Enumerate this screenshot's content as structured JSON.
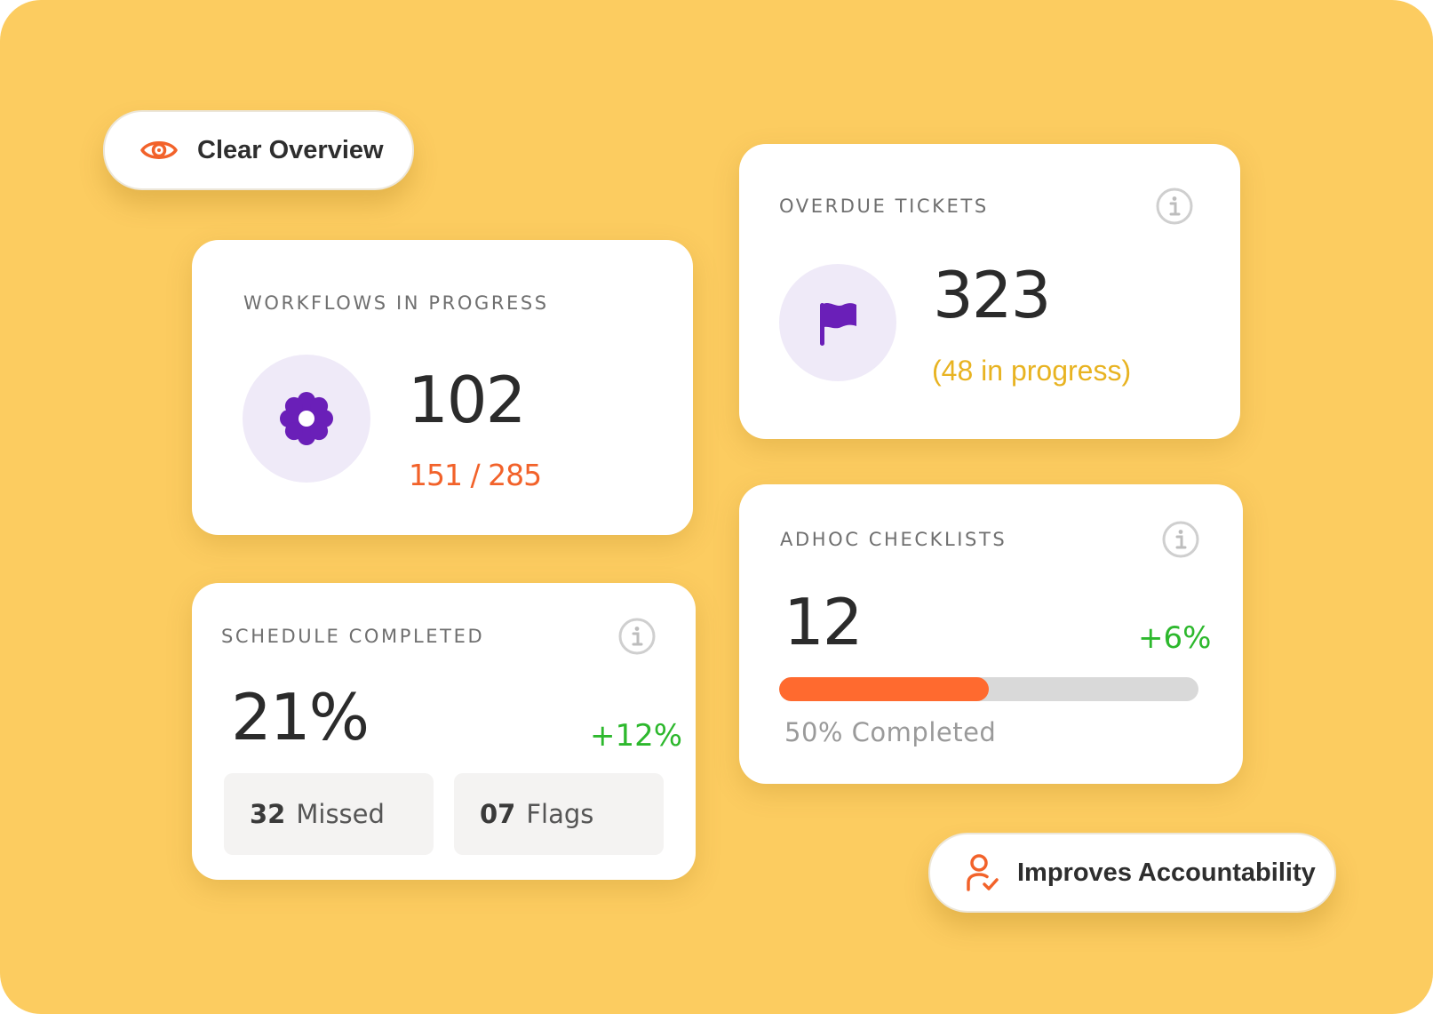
{
  "pills": {
    "clear_overview": "Clear Overview",
    "improves_accountability": "Improves Accountability"
  },
  "workflows": {
    "title": "WORKFLOWS IN PROGRESS",
    "value": "102",
    "sub": "151 / 285",
    "icon": "gear-icon"
  },
  "overdue": {
    "title": "OVERDUE TICKETS",
    "value": "323",
    "sub": "(48 in progress)",
    "icon": "flag-icon"
  },
  "schedule": {
    "title": "SCHEDULE COMPLETED",
    "value": "21%",
    "change": "+12%",
    "missed_num": "32",
    "missed_label": "Missed",
    "flags_num": "07",
    "flags_label": "Flags"
  },
  "adhoc": {
    "title": "ADHOC CHECKLISTS",
    "value": "12",
    "change": "+6%",
    "progress": 0.5,
    "progress_label": "50% Completed"
  },
  "colors": {
    "background": "#FCCC60",
    "accent_orange": "#F2622A",
    "accent_purple": "#6A1FB8",
    "progress_fill": "#FF6A2F",
    "progress_track": "#D9D9D9",
    "positive_green": "#2DB82D",
    "pending_yellow": "#E8B321"
  }
}
